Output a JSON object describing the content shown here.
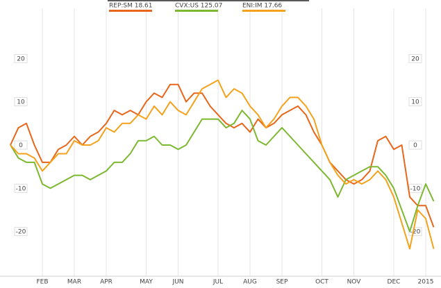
{
  "chart_data": {
    "type": "line",
    "categories": [
      null,
      null,
      null,
      null,
      "FEB",
      null,
      null,
      null,
      "MAR",
      null,
      null,
      null,
      "APR",
      null,
      null,
      null,
      null,
      "MAY",
      null,
      null,
      null,
      "JUN",
      null,
      null,
      null,
      null,
      "JUL",
      null,
      null,
      null,
      "AUG",
      null,
      null,
      null,
      "SEP",
      null,
      null,
      null,
      null,
      "OCT",
      null,
      null,
      null,
      "NOV",
      null,
      null,
      null,
      null,
      "DEC",
      null,
      null,
      null,
      "2015",
      null
    ],
    "series": [
      {
        "name": "REP:SM 18.61",
        "color": "#e8661a",
        "values": [
          0,
          4,
          5,
          0,
          -4,
          -4,
          -1,
          0,
          2,
          0,
          2,
          3,
          5,
          8,
          7,
          8,
          7,
          10,
          12,
          11,
          14,
          14,
          10,
          12,
          12,
          9,
          7,
          5,
          4,
          5,
          3,
          6,
          4,
          5,
          7,
          8,
          9,
          7,
          3,
          0,
          -4,
          -6,
          -8,
          -9,
          -8,
          -6,
          1,
          2,
          -1,
          0,
          -12,
          -14,
          -14,
          -19
        ]
      },
      {
        "name": "CVX:US 125.07",
        "color": "#7cb830",
        "values": [
          0,
          -3,
          -4,
          -4,
          -9,
          -10,
          -9,
          -8,
          -7,
          -7,
          -8,
          -7,
          -6,
          -4,
          -4,
          -2,
          1,
          1,
          2,
          0,
          0,
          -1,
          0,
          3,
          6,
          6,
          6,
          4,
          5,
          8,
          6,
          1,
          0,
          2,
          4,
          2,
          0,
          -2,
          -4,
          -6,
          -8,
          -12,
          -8,
          -7,
          -6,
          -5,
          -5,
          -7,
          -10,
          -15,
          -20,
          -14,
          -9,
          -13
        ]
      },
      {
        "name": "ENI:IM 17.66",
        "color": "#f4a21c",
        "values": [
          0,
          -2,
          -2,
          -3,
          -6,
          -4,
          -2,
          -2,
          1,
          0,
          0,
          1,
          4,
          3,
          5,
          5,
          7,
          6,
          9,
          7,
          10,
          8,
          7,
          10,
          13,
          14,
          15,
          11,
          13,
          12,
          9,
          7,
          4,
          6,
          9,
          11,
          11,
          9,
          6,
          0,
          -4,
          -7,
          -9,
          -8,
          -9,
          -8,
          -6,
          -8,
          -12,
          -18,
          -24,
          -15,
          -17,
          -24
        ]
      }
    ],
    "ylim": [
      -30,
      30
    ],
    "yticks": [
      -20,
      -10,
      0,
      10,
      20
    ],
    "grid": "x"
  }
}
